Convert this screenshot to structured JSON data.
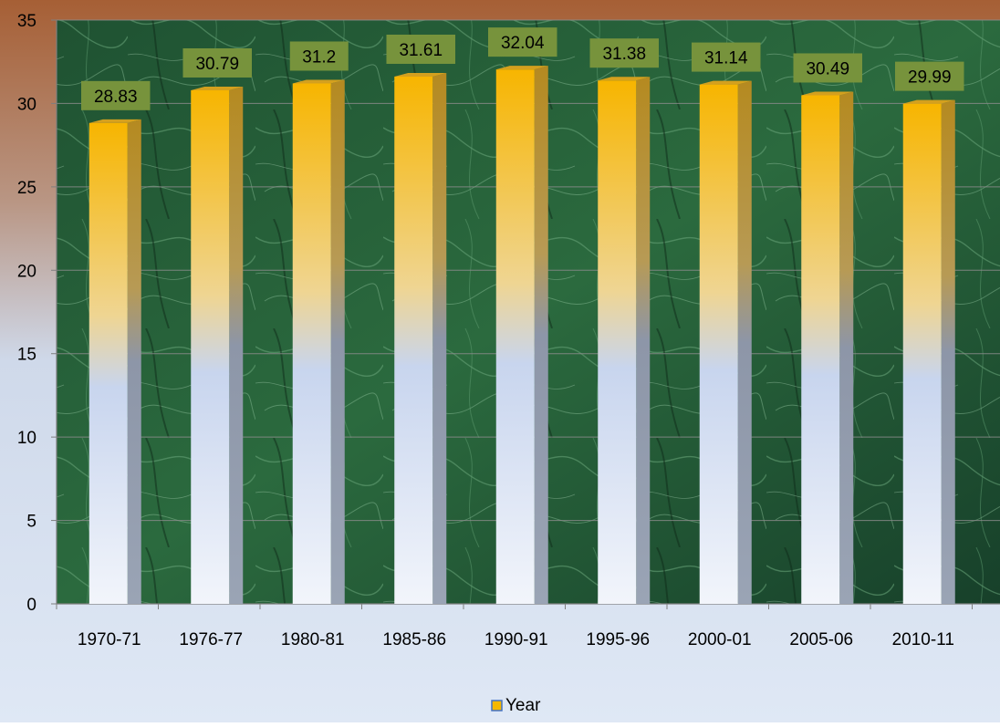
{
  "chart_data": {
    "type": "bar",
    "categories": [
      "1970-71",
      "1976-77",
      "1980-81",
      "1985-86",
      "1990-91",
      "1995-96",
      "2000-01",
      "2005-06",
      "2010-11"
    ],
    "series": [
      {
        "name": "Year",
        "values": [
          28.83,
          30.79,
          31.2,
          31.61,
          32.04,
          31.38,
          31.14,
          30.49,
          29.99
        ]
      }
    ],
    "data_labels": [
      "28.83",
      "30.79",
      "31.2",
      "31.61",
      "32.04",
      "31.38",
      "31.14",
      "30.49",
      "29.99"
    ],
    "yticks": [
      "0",
      "5",
      "10",
      "15",
      "20",
      "25",
      "30",
      "35"
    ],
    "ylim": [
      0,
      35
    ],
    "legend_position": "bottom",
    "grid": true,
    "colors": {
      "background_top": "#a0603a",
      "background_bottom": "#dce6f4",
      "plot_area": "#1d4a2a",
      "bar_top": "#f7b500",
      "bar_bottom": "#eef2fa",
      "label_box": "#77933c",
      "legend_swatch": "#f5b800"
    }
  }
}
